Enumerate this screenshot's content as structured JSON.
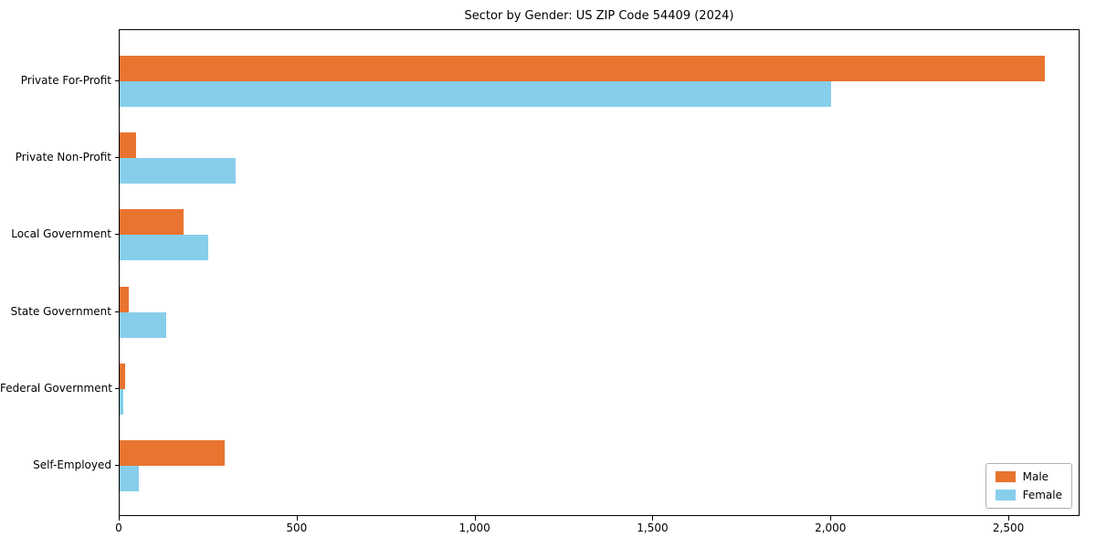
{
  "chart_data": {
    "type": "bar",
    "orientation": "horizontal",
    "title": "Sector by Gender: US ZIP Code 54409 (2024)",
    "categories": [
      "Private For-Profit",
      "Private Non-Profit",
      "Local Government",
      "State Government",
      "Federal Government",
      "Self-Employed"
    ],
    "series": [
      {
        "name": "Male",
        "color": "#e8742f",
        "values": [
          2600,
          45,
          180,
          25,
          15,
          295
        ]
      },
      {
        "name": "Female",
        "color": "#87ceeb",
        "values": [
          2000,
          325,
          250,
          130,
          10,
          55
        ]
      }
    ],
    "xlim": [
      0,
      2700
    ],
    "x_ticks": [
      0,
      500,
      1000,
      1500,
      2000,
      2500
    ],
    "x_tick_labels": [
      "0",
      "500",
      "1,000",
      "1,500",
      "2,000",
      "2,500"
    ],
    "xlabel": "",
    "ylabel": "",
    "grid": false,
    "legend_position": "lower right"
  }
}
